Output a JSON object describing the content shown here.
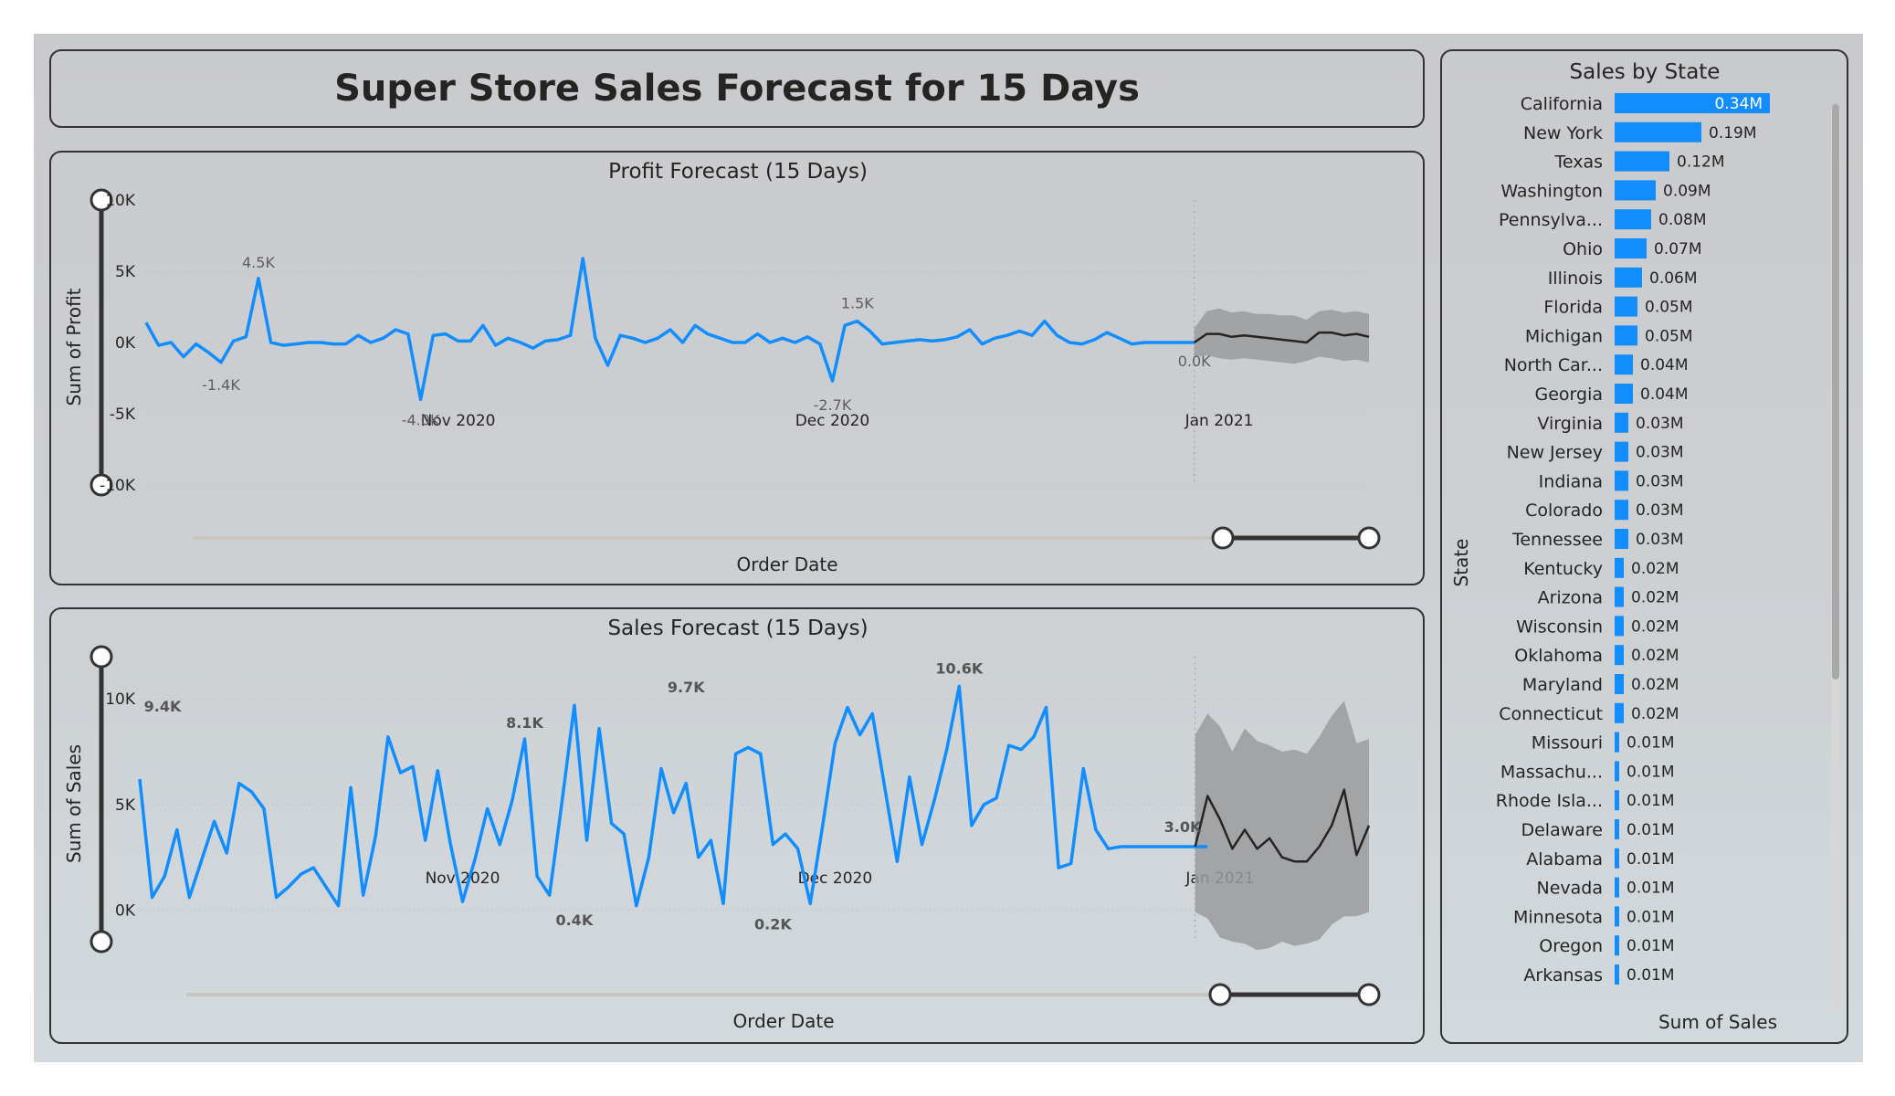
{
  "title": "Super Store Sales Forecast for 15 Days",
  "profit_chart": {
    "title": "Profit Forecast (15 Days)",
    "ylabel": "Sum of Profit",
    "xlabel": "Order Date",
    "y_ticks": [
      "10K",
      "5K",
      "0K",
      "-5K",
      "-10K"
    ],
    "x_ticks": [
      "Nov 2020",
      "Dec 2020",
      "Jan 2021"
    ]
  },
  "sales_chart": {
    "title": "Sales Forecast (15 Days)",
    "ylabel": "Sum of Sales",
    "xlabel": "Order Date",
    "y_ticks": [
      "10K",
      "5K",
      "0K"
    ],
    "x_ticks": [
      "Nov 2020",
      "Dec 2020",
      "Jan 2021"
    ]
  },
  "state_chart": {
    "title": "Sales by State",
    "ylabel": "State",
    "xlabel": "Sum of Sales"
  },
  "colors": {
    "series": "#118dff",
    "forecast": "#252423",
    "band": "#9a9b9e",
    "accent_text": "#252423"
  },
  "chart_data": [
    {
      "type": "line",
      "title": "Profit Forecast (15 Days)",
      "xlabel": "Order Date",
      "ylabel": "Sum of Profit",
      "ylim": [
        -10000,
        10000
      ],
      "x_range": [
        "2020-10-07",
        "2021-01-13"
      ],
      "grid": false,
      "series": [
        {
          "x": [
            "2020-10-07",
            "2020-10-08",
            "2020-10-09",
            "2020-10-10",
            "2020-10-11",
            "2020-10-12",
            "2020-10-13",
            "2020-10-14",
            "2020-10-15",
            "2020-10-16",
            "2020-10-17",
            "2020-10-18",
            "2020-10-19",
            "2020-10-20",
            "2020-10-21",
            "2020-10-22",
            "2020-10-23",
            "2020-10-24",
            "2020-10-25",
            "2020-10-26",
            "2020-10-27",
            "2020-10-28",
            "2020-10-29",
            "2020-10-30",
            "2020-10-31",
            "2020-11-01",
            "2020-11-02",
            "2020-11-03",
            "2020-11-04",
            "2020-11-05",
            "2020-11-06",
            "2020-11-07",
            "2020-11-08",
            "2020-11-09",
            "2020-11-10",
            "2020-11-11",
            "2020-11-12",
            "2020-11-13",
            "2020-11-14",
            "2020-11-15",
            "2020-11-16",
            "2020-11-17",
            "2020-11-18",
            "2020-11-19",
            "2020-11-20",
            "2020-11-21",
            "2020-11-22",
            "2020-11-23",
            "2020-11-24",
            "2020-11-25",
            "2020-11-26",
            "2020-11-27",
            "2020-11-28",
            "2020-11-29",
            "2020-11-30",
            "2020-12-01",
            "2020-12-02",
            "2020-12-03",
            "2020-12-04",
            "2020-12-05",
            "2020-12-06",
            "2020-12-07",
            "2020-12-08",
            "2020-12-09",
            "2020-12-10",
            "2020-12-11",
            "2020-12-12",
            "2020-12-13",
            "2020-12-14",
            "2020-12-15",
            "2020-12-16",
            "2020-12-17",
            "2020-12-18",
            "2020-12-19",
            "2020-12-20",
            "2020-12-21",
            "2020-12-22",
            "2020-12-23",
            "2020-12-24",
            "2020-12-25",
            "2020-12-26",
            "2020-12-27",
            "2020-12-28",
            "2020-12-29",
            "2020-12-30"
          ],
          "y": [
            1400,
            -200,
            0,
            -1000,
            -100,
            -700,
            -1400,
            100,
            400,
            4500,
            0,
            -200,
            -100,
            0,
            0,
            -100,
            -100,
            500,
            0,
            300,
            900,
            600,
            -4000,
            500,
            600,
            100,
            100,
            1200,
            -200,
            300,
            0,
            -400,
            100,
            200,
            500,
            5900,
            300,
            -1600,
            500,
            300,
            0,
            300,
            900,
            0,
            1200,
            600,
            300,
            0,
            0,
            600,
            0,
            300,
            0,
            400,
            -100,
            -2700,
            1200,
            1500,
            800,
            -100,
            0,
            100,
            200,
            100,
            200,
            400,
            900,
            -100,
            300,
            500,
            800,
            500,
            1500,
            500,
            0,
            -100,
            200,
            700,
            300,
            -100,
            0,
            0,
            0,
            0,
            0
          ]
        },
        {
          "name": "forecast",
          "x": [
            "2020-12-30",
            "2020-12-31",
            "2021-01-01",
            "2021-01-02",
            "2021-01-03",
            "2021-01-04",
            "2021-01-05",
            "2021-01-06",
            "2021-01-07",
            "2021-01-08",
            "2021-01-09",
            "2021-01-10",
            "2021-01-11",
            "2021-01-12",
            "2021-01-13"
          ],
          "y": [
            0,
            600,
            600,
            400,
            500,
            400,
            300,
            200,
            100,
            0,
            700,
            700,
            500,
            600,
            400
          ],
          "lower": [
            -1000,
            -900,
            -1100,
            -1200,
            -1100,
            -1200,
            -1300,
            -1400,
            -1500,
            -1300,
            -1000,
            -1100,
            -1300,
            -1200,
            -1400
          ],
          "upper": [
            1000,
            2200,
            2400,
            2100,
            2200,
            2000,
            2000,
            1900,
            1900,
            1600,
            2200,
            2300,
            2100,
            2200,
            2000
          ]
        }
      ],
      "annotations": [
        "4.5K",
        "-1.4K",
        "-4.0K",
        "1.5K",
        "-2.7K",
        "0.0K"
      ]
    },
    {
      "type": "line",
      "title": "Sales Forecast (15 Days)",
      "xlabel": "Order Date",
      "ylabel": "Sum of Sales",
      "ylim": [
        -1500,
        12000
      ],
      "x_range": [
        "2020-10-06",
        "2021-01-13"
      ],
      "grid": false,
      "series": [
        {
          "x": [
            "2020-10-06",
            "2020-10-07",
            "2020-10-08",
            "2020-10-09",
            "2020-10-10",
            "2020-10-11",
            "2020-10-12",
            "2020-10-13",
            "2020-10-14",
            "2020-10-15",
            "2020-10-16",
            "2020-10-17",
            "2020-10-18",
            "2020-10-19",
            "2020-10-20",
            "2020-10-21",
            "2020-10-22",
            "2020-10-23",
            "2020-10-24",
            "2020-10-25",
            "2020-10-26",
            "2020-10-27",
            "2020-10-28",
            "2020-10-29",
            "2020-10-30",
            "2020-10-31",
            "2020-11-01",
            "2020-11-02",
            "2020-11-03",
            "2020-11-04",
            "2020-11-05",
            "2020-11-06",
            "2020-11-07",
            "2020-11-08",
            "2020-11-09",
            "2020-11-10",
            "2020-11-11",
            "2020-11-12",
            "2020-11-13",
            "2020-11-14",
            "2020-11-15",
            "2020-11-16",
            "2020-11-17",
            "2020-11-18",
            "2020-11-19",
            "2020-11-20",
            "2020-11-21",
            "2020-11-22",
            "2020-11-23",
            "2020-11-24",
            "2020-11-25",
            "2020-11-26",
            "2020-11-27",
            "2020-11-28",
            "2020-11-29",
            "2020-11-30",
            "2020-12-01",
            "2020-12-02",
            "2020-12-03",
            "2020-12-04",
            "2020-12-05",
            "2020-12-06",
            "2020-12-07",
            "2020-12-08",
            "2020-12-09",
            "2020-12-10",
            "2020-12-11",
            "2020-12-12",
            "2020-12-13",
            "2020-12-14",
            "2020-12-15",
            "2020-12-16",
            "2020-12-17",
            "2020-12-18",
            "2020-12-19",
            "2020-12-20",
            "2020-12-21",
            "2020-12-22",
            "2020-12-23",
            "2020-12-24",
            "2020-12-25",
            "2020-12-26",
            "2020-12-27",
            "2020-12-28",
            "2020-12-29",
            "2020-12-30",
            "2020-12-31"
          ],
          "y": [
            6200,
            600,
            1600,
            3800,
            600,
            2400,
            4200,
            2700,
            6000,
            5600,
            4800,
            600,
            1100,
            1700,
            2000,
            1100,
            200,
            5800,
            700,
            3500,
            8200,
            6500,
            6800,
            3300,
            6600,
            3200,
            400,
            2400,
            4800,
            3100,
            5200,
            8100,
            1600,
            700,
            5100,
            9700,
            3300,
            8600,
            4100,
            3600,
            200,
            2500,
            6700,
            4600,
            6000,
            2500,
            3300,
            300,
            7400,
            7700,
            7400,
            3100,
            3600,
            2900,
            300,
            4000,
            7900,
            9600,
            8300,
            9300,
            5800,
            2300,
            6300,
            3100,
            5200,
            7600,
            10600,
            4000,
            5000,
            5300,
            7800,
            7600,
            8200,
            9600,
            2000,
            2200,
            6700,
            3800,
            2900,
            3000,
            3000,
            3000,
            3000,
            3000,
            3000,
            3000,
            3000
          ]
        },
        {
          "name": "forecast",
          "x": [
            "2020-12-30",
            "2020-12-31",
            "2021-01-01",
            "2021-01-02",
            "2021-01-03",
            "2021-01-04",
            "2021-01-05",
            "2021-01-06",
            "2021-01-07",
            "2021-01-08",
            "2021-01-09",
            "2021-01-10",
            "2021-01-11",
            "2021-01-12",
            "2021-01-13"
          ],
          "y": [
            3000,
            5400,
            4300,
            2900,
            3800,
            2900,
            3400,
            2500,
            2300,
            2300,
            3000,
            4000,
            5700,
            2600,
            4000
          ],
          "lower": [
            -100,
            -400,
            -1300,
            -1500,
            -1600,
            -1900,
            -1800,
            -1500,
            -1700,
            -1600,
            -1400,
            -700,
            -300,
            -300,
            -100
          ],
          "upper": [
            8300,
            9300,
            8700,
            7500,
            8600,
            8000,
            7800,
            7500,
            7600,
            7400,
            8200,
            9200,
            9900,
            7900,
            8100
          ]
        }
      ],
      "annotations": [
        "9.4K",
        "8.1K",
        "0.4K",
        "9.7K",
        "0.2K",
        "10.6K",
        "3.0K"
      ]
    },
    {
      "type": "bar",
      "title": "Sales by State",
      "xlabel": "Sum of Sales",
      "ylabel": "State",
      "orientation": "horizontal",
      "categories": [
        "California",
        "New York",
        "Texas",
        "Washington",
        "Pennsylva...",
        "Ohio",
        "Illinois",
        "Florida",
        "Michigan",
        "North Car...",
        "Georgia",
        "Virginia",
        "New Jersey",
        "Indiana",
        "Colorado",
        "Tennessee",
        "Kentucky",
        "Arizona",
        "Wisconsin",
        "Oklahoma",
        "Maryland",
        "Connecticut",
        "Missouri",
        "Massachu...",
        "Rhode Isla...",
        "Delaware",
        "Alabama",
        "Nevada",
        "Minnesota",
        "Oregon",
        "Arkansas"
      ],
      "values": [
        0.34,
        0.19,
        0.12,
        0.09,
        0.08,
        0.07,
        0.06,
        0.05,
        0.05,
        0.04,
        0.04,
        0.03,
        0.03,
        0.03,
        0.03,
        0.03,
        0.02,
        0.02,
        0.02,
        0.02,
        0.02,
        0.02,
        0.01,
        0.01,
        0.01,
        0.01,
        0.01,
        0.01,
        0.01,
        0.01,
        0.01
      ],
      "labels": [
        "0.34M",
        "0.19M",
        "0.12M",
        "0.09M",
        "0.08M",
        "0.07M",
        "0.06M",
        "0.05M",
        "0.05M",
        "0.04M",
        "0.04M",
        "0.03M",
        "0.03M",
        "0.03M",
        "0.03M",
        "0.03M",
        "0.02M",
        "0.02M",
        "0.02M",
        "0.02M",
        "0.02M",
        "0.02M",
        "0.01M",
        "0.01M",
        "0.01M",
        "0.01M",
        "0.01M",
        "0.01M",
        "0.01M",
        "0.01M",
        "0.01M"
      ],
      "value_unit": "M"
    }
  ]
}
